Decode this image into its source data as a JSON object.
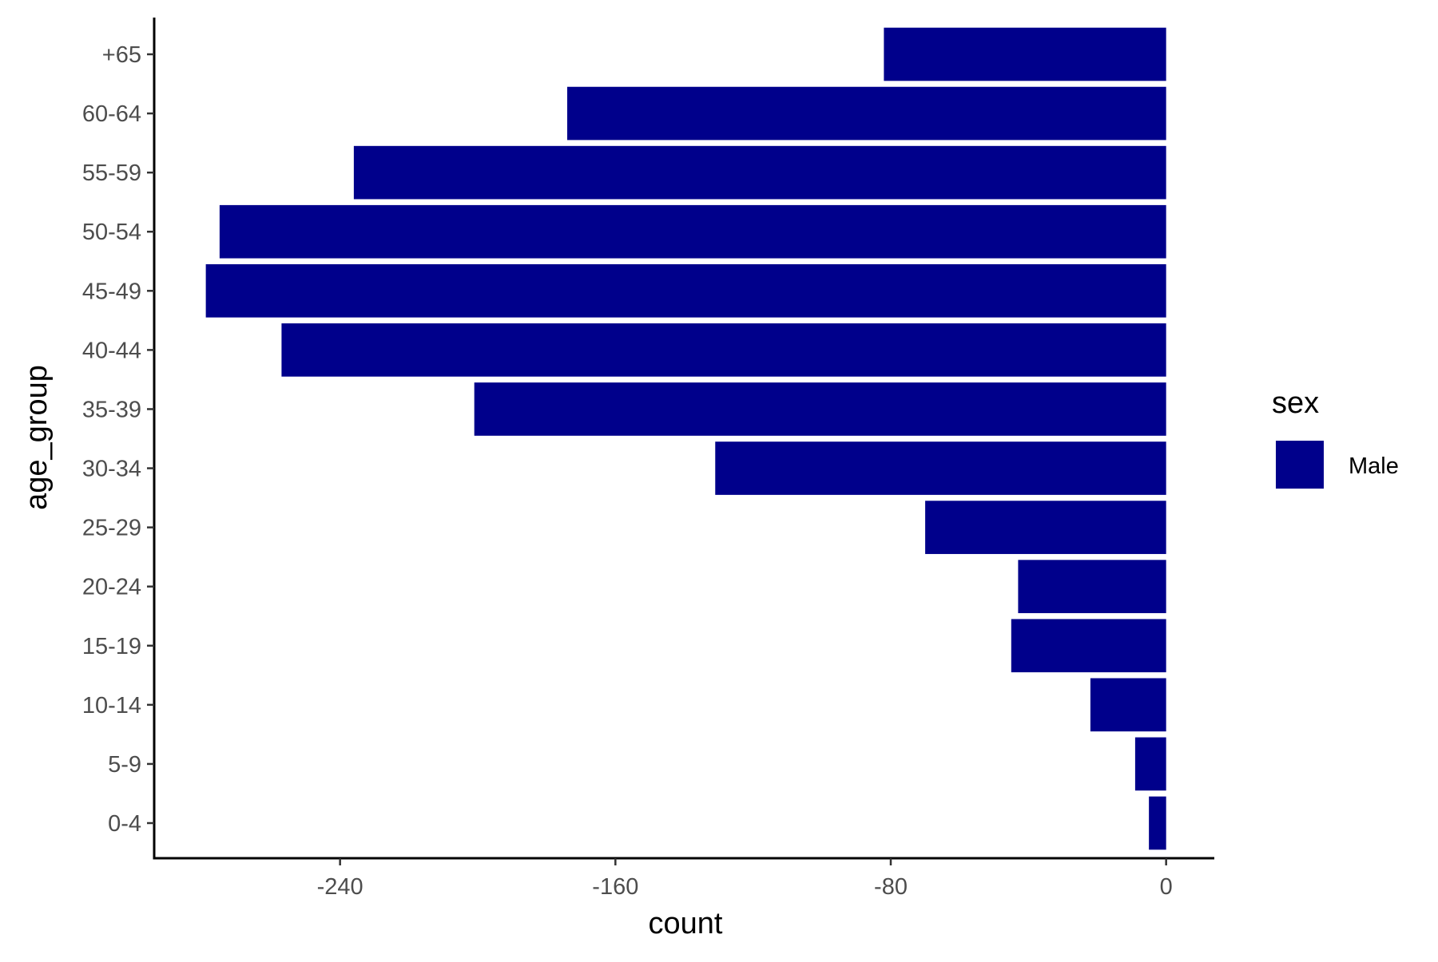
{
  "chart_data": {
    "type": "bar",
    "orientation": "horizontal",
    "title": "",
    "xlabel": "count",
    "ylabel": "age_group",
    "categories": [
      "0-4",
      "5-9",
      "10-14",
      "15-19",
      "20-24",
      "25-29",
      "30-34",
      "35-39",
      "40-44",
      "45-49",
      "50-54",
      "55-59",
      "60-64",
      "+65"
    ],
    "series": [
      {
        "name": "Male",
        "color": "#00008B",
        "values": [
          -5,
          -9,
          -22,
          -45,
          -43,
          -70,
          -131,
          -201,
          -257,
          -279,
          -275,
          -236,
          -174,
          -82
        ]
      }
    ],
    "xlim": [
      -294,
      14
    ],
    "xticks": [
      -240,
      -160,
      -80,
      0
    ],
    "grid": false,
    "legend": {
      "title": "sex",
      "position": "right"
    }
  }
}
